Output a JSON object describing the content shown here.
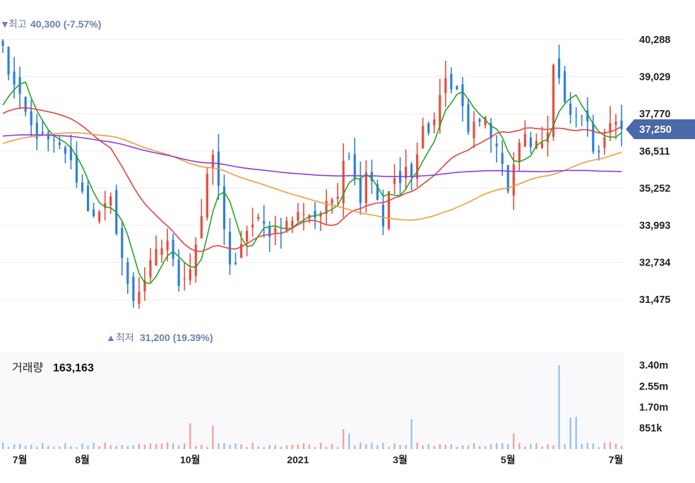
{
  "chart_data": {
    "type": "candlestick",
    "price_axis": {
      "ticks": [
        "40,288",
        "39,029",
        "37,770",
        "36,511",
        "35,252",
        "33,993",
        "32,734",
        "31,475"
      ],
      "tick_values": [
        40288,
        39029,
        37770,
        36511,
        35252,
        33993,
        32734,
        31475
      ],
      "range": [
        30380,
        41150
      ]
    },
    "current_price": {
      "label": "37,250",
      "value": 37250,
      "color": "#4b68a8"
    },
    "high_marker": {
      "label": "최고",
      "value_text": "40,300 (-7.57%)",
      "value": 40300
    },
    "low_marker": {
      "label": "최저",
      "value_text": "31,200 (19.39%)",
      "value": 31200
    },
    "x_axis": {
      "labels": [
        "7월",
        "8월",
        "10월",
        "2021",
        "3월",
        "5월",
        "7월"
      ],
      "label_positions_bar": [
        3,
        14,
        33,
        52,
        70,
        89,
        108
      ]
    },
    "volume_panel": {
      "title": "거래량",
      "value_text": "163,163",
      "ticks": [
        "3.40m",
        "2.55m",
        "1.70m",
        "851k"
      ],
      "tick_values": [
        3400000,
        2550000,
        1700000,
        851000
      ]
    },
    "price_path_anchors": [
      [
        0,
        40000
      ],
      [
        1,
        39200
      ],
      [
        3,
        38200
      ],
      [
        5,
        37300
      ],
      [
        7,
        36900
      ],
      [
        9,
        36700
      ],
      [
        11,
        36500
      ],
      [
        13,
        35600
      ],
      [
        15,
        34600
      ],
      [
        17,
        34300
      ],
      [
        19,
        34800
      ],
      [
        20,
        33900
      ],
      [
        21,
        32900
      ],
      [
        22,
        31900
      ],
      [
        23,
        31500
      ],
      [
        25,
        32200
      ],
      [
        27,
        33000
      ],
      [
        29,
        33500
      ],
      [
        30,
        32700
      ],
      [
        31,
        32100
      ],
      [
        33,
        32600
      ],
      [
        34,
        33400
      ],
      [
        35,
        34300
      ],
      [
        36,
        35500
      ],
      [
        37,
        36400
      ],
      [
        38,
        35200
      ],
      [
        39,
        34000
      ],
      [
        40,
        32700
      ],
      [
        41,
        32500
      ],
      [
        42,
        33200
      ],
      [
        43,
        33900
      ],
      [
        45,
        34100
      ],
      [
        47,
        33800
      ],
      [
        49,
        33900
      ],
      [
        51,
        34200
      ],
      [
        53,
        34500
      ],
      [
        55,
        34300
      ],
      [
        57,
        34600
      ],
      [
        59,
        35200
      ],
      [
        60,
        36300
      ],
      [
        61,
        36500
      ],
      [
        62,
        35500
      ],
      [
        63,
        35000
      ],
      [
        64,
        35900
      ],
      [
        65,
        35600
      ],
      [
        66,
        34900
      ],
      [
        67,
        34100
      ],
      [
        68,
        35000
      ],
      [
        69,
        35600
      ],
      [
        70,
        35400
      ],
      [
        71,
        35800
      ],
      [
        72,
        35600
      ],
      [
        73,
        36300
      ],
      [
        74,
        37600
      ],
      [
        75,
        37100
      ],
      [
        76,
        37600
      ],
      [
        77,
        38400
      ],
      [
        78,
        38900
      ],
      [
        79,
        38700
      ],
      [
        80,
        38600
      ],
      [
        81,
        37800
      ],
      [
        82,
        37300
      ],
      [
        83,
        37500
      ],
      [
        84,
        37300
      ],
      [
        85,
        37600
      ],
      [
        86,
        37200
      ],
      [
        87,
        36600
      ],
      [
        88,
        36000
      ],
      [
        89,
        35200
      ],
      [
        90,
        35900
      ],
      [
        91,
        36700
      ],
      [
        92,
        37200
      ],
      [
        93,
        36500
      ],
      [
        94,
        36600
      ],
      [
        95,
        36800
      ],
      [
        96,
        37300
      ],
      [
        97,
        39400
      ],
      [
        98,
        38900
      ],
      [
        99,
        38000
      ],
      [
        100,
        37700
      ],
      [
        101,
        37600
      ],
      [
        102,
        37900
      ],
      [
        103,
        37300
      ],
      [
        104,
        36700
      ],
      [
        105,
        36600
      ],
      [
        106,
        37000
      ],
      [
        107,
        37300
      ],
      [
        108,
        37600
      ],
      [
        109,
        37250
      ]
    ],
    "moving_averages": [
      {
        "color": "#22a722",
        "window": 5
      },
      {
        "color": "#e8403c",
        "window": 20
      },
      {
        "color": "#f39c34",
        "window": 60
      },
      {
        "color": "#8a3ce3",
        "window": 120
      }
    ],
    "colors": {
      "up": "#e84c3d",
      "down": "#2d7fdb",
      "grid": "#eeeeee",
      "up_volume": "#f2a3a3",
      "down_volume": "#9cc3ef"
    }
  }
}
